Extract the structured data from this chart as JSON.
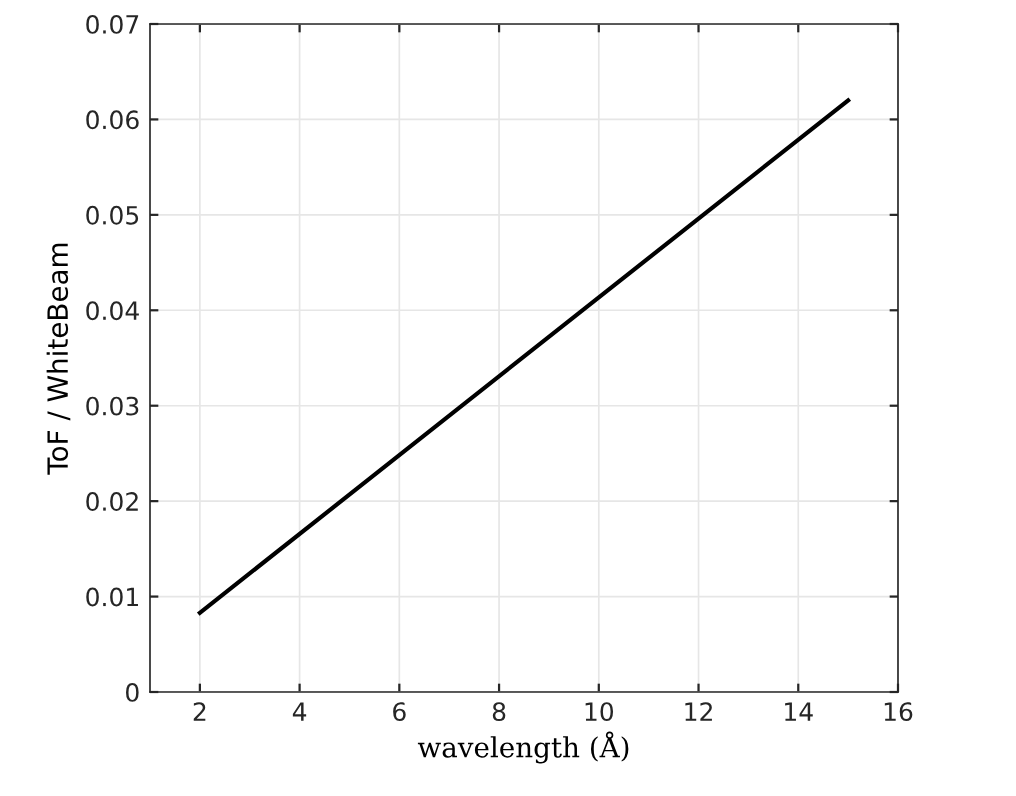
{
  "chart_data": {
    "type": "line",
    "xlabel": "wavelength (Å)",
    "ylabel": "ToF / WhiteBeam",
    "x": [
      2,
      15
    ],
    "series": [
      {
        "color": "#000000",
        "values": [
          0.0083,
          0.062
        ]
      }
    ],
    "xlim": [
      1,
      16
    ],
    "xticks": [
      2,
      4,
      6,
      8,
      10,
      12,
      14,
      16
    ],
    "ylim": [
      0,
      0.07
    ],
    "yticks": [
      0,
      0.01,
      0.02,
      0.03,
      0.04,
      0.05,
      0.06,
      0.07
    ],
    "grid": true
  }
}
